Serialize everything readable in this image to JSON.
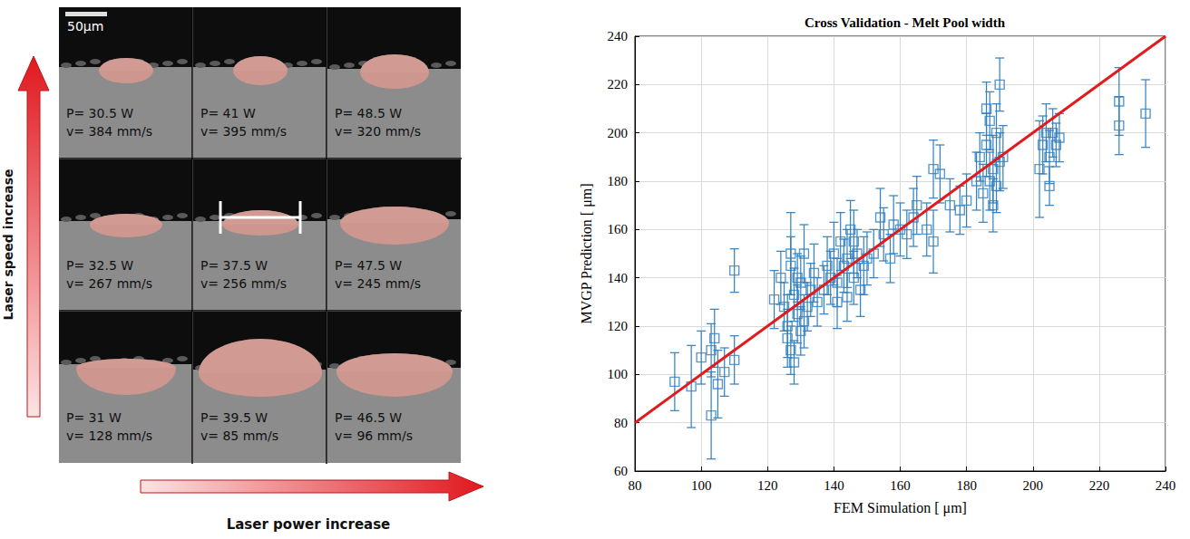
{
  "figure": {
    "scale_bar": "50µm",
    "y_arrow": "Laser speed increase",
    "x_arrow": "Laser power increase",
    "panels": [
      [
        {
          "P": "P= 30.5 W",
          "v": "v= 384 mm/s"
        },
        {
          "P": "P= 41 W",
          "v": "v= 395 mm/s"
        },
        {
          "P": "P= 48.5 W",
          "v": "v= 320 mm/s"
        }
      ],
      [
        {
          "P": "P= 32.5 W",
          "v": "v= 267 mm/s"
        },
        {
          "P": "P= 37.5 W",
          "v": "v= 256 mm/s"
        },
        {
          "P": "P= 47.5 W",
          "v": "v= 245 mm/s"
        }
      ],
      [
        {
          "P": "P= 31 W",
          "v": "v= 128 mm/s"
        },
        {
          "P": "P= 39.5 W",
          "v": "v= 85 mm/s"
        },
        {
          "P": "P= 46.5 W",
          "v": "v= 96 mm/s"
        }
      ]
    ]
  },
  "chart_data": {
    "type": "scatter",
    "title": "Cross Validation - Melt Pool width",
    "x_label": "FEM Simulation [ μm]",
    "y_label": "MVGP Prediction [ μm]",
    "xlim": [
      80,
      240
    ],
    "xticks": [
      80,
      100,
      120,
      140,
      160,
      180,
      200,
      220,
      240
    ],
    "ylim": [
      60,
      240
    ],
    "yticks": [
      60,
      80,
      100,
      120,
      140,
      160,
      180,
      200,
      220,
      240
    ],
    "grid": true,
    "series": [
      {
        "type": "scatter",
        "color": "#2f7fc1",
        "marker": "square",
        "x": [
          92,
          97,
          100,
          103,
          103,
          104,
          105,
          107,
          110,
          110,
          122,
          124,
          125,
          126,
          126,
          127,
          127,
          127,
          128,
          128,
          129,
          129,
          130,
          130,
          131,
          131,
          132,
          133,
          134,
          135,
          137,
          138,
          139,
          140,
          141,
          141,
          142,
          143,
          144,
          144,
          145,
          146,
          146,
          147,
          148,
          149,
          150,
          152,
          154,
          155,
          157,
          158,
          160,
          162,
          164,
          165,
          168,
          170,
          170,
          172,
          175,
          178,
          180,
          183,
          184,
          185,
          186,
          186,
          187,
          187,
          188,
          188,
          189,
          189,
          190,
          190,
          191,
          202,
          203,
          204,
          205,
          205,
          206,
          207,
          208,
          226,
          226,
          234
        ],
        "values": [
          97,
          95,
          107,
          83,
          110,
          115,
          96,
          101,
          106,
          143,
          131,
          140,
          128,
          120,
          115,
          110,
          145,
          150,
          133,
          105,
          125,
          140,
          138,
          118,
          150,
          122,
          128,
          135,
          142,
          130,
          135,
          145,
          140,
          150,
          138,
          130,
          155,
          145,
          132,
          148,
          160,
          140,
          155,
          150,
          135,
          145,
          148,
          150,
          165,
          158,
          148,
          162,
          160,
          158,
          165,
          170,
          160,
          155,
          185,
          183,
          170,
          168,
          172,
          180,
          190,
          175,
          195,
          210,
          180,
          205,
          170,
          185,
          200,
          178,
          220,
          188,
          190,
          185,
          195,
          200,
          178,
          190,
          200,
          195,
          198,
          213,
          203,
          208
        ],
        "errors": [
          12,
          17,
          11,
          18,
          11,
          12,
          14,
          10,
          10,
          9,
          12,
          11,
          10,
          13,
          12,
          10,
          12,
          17,
          11,
          9,
          12,
          10,
          11,
          10,
          12,
          11,
          10,
          11,
          12,
          10,
          10,
          12,
          11,
          13,
          10,
          11,
          12,
          11,
          10,
          12,
          12,
          11,
          13,
          10,
          11,
          12,
          11,
          10,
          12,
          11,
          10,
          12,
          11,
          10,
          12,
          12,
          11,
          13,
          12,
          12,
          11,
          10,
          11,
          12,
          10,
          12,
          13,
          11,
          12,
          12,
          11,
          14,
          12,
          11,
          11,
          12,
          13,
          20,
          12,
          12,
          8,
          11,
          10,
          9,
          10,
          14,
          12,
          14
        ]
      },
      {
        "type": "line",
        "color": "#e31a1c",
        "line_style": "solid",
        "x": [
          80,
          240
        ],
        "values": [
          80,
          240
        ]
      }
    ]
  }
}
